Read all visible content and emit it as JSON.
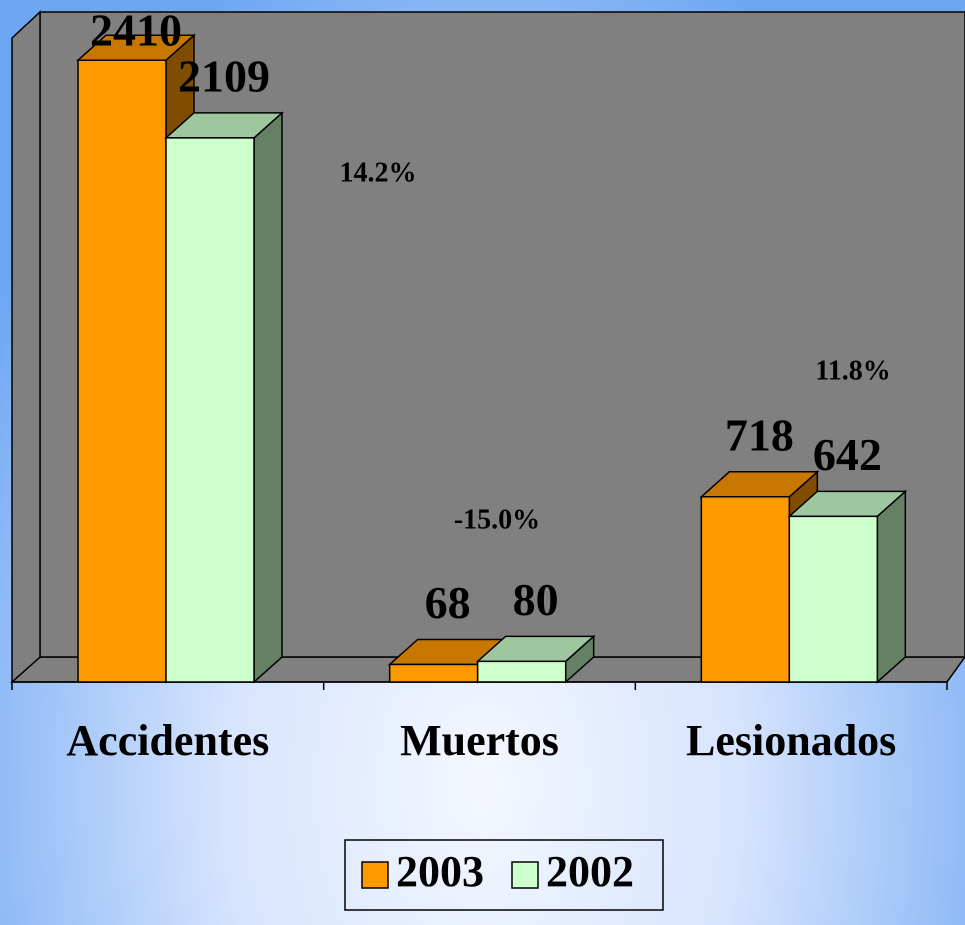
{
  "chart_data": {
    "type": "bar3d",
    "categories": [
      "Accidentes",
      "Muertos",
      "Lesionados"
    ],
    "series": [
      {
        "name": "2003",
        "color": "#ff9900",
        "values": [
          2410,
          68,
          718
        ]
      },
      {
        "name": "2002",
        "color": "#ccffcc",
        "values": [
          2109,
          80,
          642
        ]
      }
    ],
    "annotations": [
      "14.2%",
      "-15.0%",
      "11.8%"
    ],
    "ylim": [
      0,
      2500
    ]
  }
}
